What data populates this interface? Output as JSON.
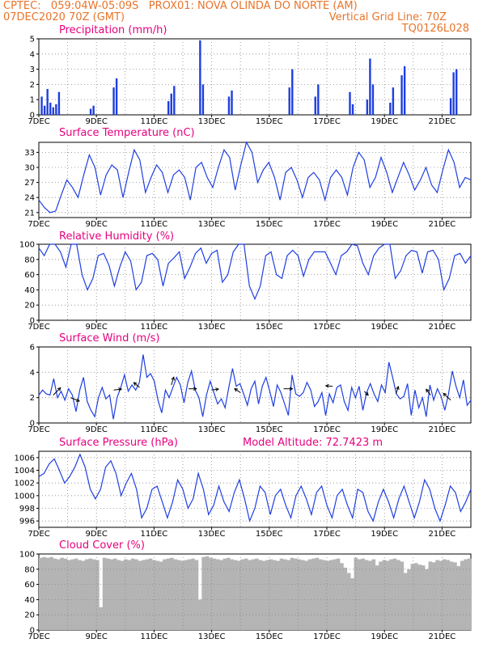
{
  "header": {
    "line1": "CPTEC:   059:04W-05:09S   PROX01: NOVA OLINDA DO NORTE (AM)",
    "line2": "07DEC2020 70Z (GMT)",
    "vertical_grid": "Vertical Grid Line: 70Z",
    "code": "TQ0126L028"
  },
  "colors": {
    "header": "#e8742a",
    "title": "#e6007e",
    "line": "#1f3fe0",
    "cloud": "#b4b4b4",
    "grid": "#888888"
  },
  "chart_data": [
    {
      "id": "precip",
      "type": "bar",
      "title": "Precipitation (mm/h)",
      "ylim": [
        0,
        5
      ],
      "yticks": [
        "0",
        "1",
        "2",
        "3",
        "4",
        "5"
      ],
      "xlabels": [
        "7DEC",
        "9DEC",
        "11DEC",
        "13DEC",
        "15DEC",
        "17DEC",
        "19DEC",
        "21DEC"
      ],
      "x_range_days": [
        0,
        15
      ],
      "values": [
        [
          0.1,
          1.2
        ],
        [
          0.2,
          0.6
        ],
        [
          0.3,
          1.7
        ],
        [
          0.4,
          0.8
        ],
        [
          0.5,
          0.5
        ],
        [
          0.6,
          0.7
        ],
        [
          0.7,
          1.5
        ],
        [
          1.8,
          0.4
        ],
        [
          1.9,
          0.6
        ],
        [
          2.6,
          1.8
        ],
        [
          2.7,
          2.4
        ],
        [
          4.5,
          0.9
        ],
        [
          4.6,
          1.4
        ],
        [
          4.7,
          1.9
        ],
        [
          5.6,
          4.9
        ],
        [
          5.7,
          2.0
        ],
        [
          6.6,
          1.2
        ],
        [
          6.7,
          1.6
        ],
        [
          8.7,
          1.8
        ],
        [
          8.8,
          3.0
        ],
        [
          9.6,
          1.2
        ],
        [
          9.7,
          2.0
        ],
        [
          10.8,
          1.5
        ],
        [
          10.9,
          0.7
        ],
        [
          11.4,
          1.0
        ],
        [
          11.5,
          3.7
        ],
        [
          11.6,
          2.0
        ],
        [
          12.2,
          0.8
        ],
        [
          12.3,
          1.8
        ],
        [
          12.6,
          2.6
        ],
        [
          12.7,
          3.2
        ],
        [
          14.3,
          1.1
        ],
        [
          14.4,
          2.8
        ],
        [
          14.5,
          3.0
        ]
      ]
    },
    {
      "id": "temp",
      "type": "line",
      "title": "Surface Temperature (nC)",
      "ylim": [
        20,
        35
      ],
      "yticks": [
        "21",
        "24",
        "27",
        "30",
        "33"
      ],
      "ytick_values": [
        21,
        24,
        27,
        30,
        33
      ],
      "xlabels": [
        "7DEC",
        "9DEC",
        "11DEC",
        "13DEC",
        "15DEC",
        "17DEC",
        "19DEC",
        "21DEC"
      ],
      "x_range_days": [
        0,
        15
      ],
      "values": [
        23.5,
        22.0,
        21.0,
        21.3,
        24.5,
        27.5,
        26.0,
        24.0,
        28.5,
        32.5,
        30.0,
        24.5,
        28.5,
        30.5,
        29.5,
        24.0,
        29.0,
        33.5,
        31.5,
        25.0,
        28.0,
        30.5,
        29.0,
        25.0,
        28.5,
        29.5,
        28.0,
        23.5,
        30.0,
        31.0,
        28.0,
        26.0,
        30.0,
        33.5,
        32.0,
        25.5,
        30.5,
        35.0,
        33.0,
        27.0,
        29.5,
        31.0,
        28.0,
        23.5,
        29.0,
        30.0,
        27.5,
        24.0,
        28.0,
        29.0,
        27.5,
        23.5,
        28.0,
        29.5,
        28.0,
        24.5,
        30.0,
        33.0,
        31.5,
        26.0,
        28.0,
        32.0,
        29.0,
        25.0,
        28.0,
        31.0,
        28.5,
        25.5,
        27.5,
        30.0,
        26.5,
        25.0,
        29.5,
        33.5,
        31.0,
        26.0,
        28.0,
        27.5
      ]
    },
    {
      "id": "rh",
      "type": "line",
      "title": "Relative Humidity (%)",
      "ylim": [
        0,
        100
      ],
      "yticks": [
        "0",
        "20",
        "40",
        "60",
        "80",
        "100"
      ],
      "ytick_values": [
        0,
        20,
        40,
        60,
        80,
        100
      ],
      "xlabels": [
        "7DEC",
        "9DEC",
        "11DEC",
        "13DEC",
        "15DEC",
        "17DEC",
        "19DEC",
        "21DEC"
      ],
      "x_range_days": [
        0,
        15
      ],
      "values": [
        95,
        85,
        100,
        100,
        90,
        70,
        100,
        100,
        60,
        40,
        55,
        85,
        88,
        72,
        45,
        70,
        90,
        78,
        40,
        50,
        85,
        88,
        80,
        45,
        75,
        82,
        90,
        55,
        70,
        88,
        95,
        75,
        88,
        92,
        50,
        60,
        90,
        100,
        100,
        45,
        28,
        45,
        85,
        90,
        60,
        55,
        85,
        92,
        85,
        58,
        80,
        90,
        90,
        90,
        75,
        60,
        85,
        90,
        100,
        98,
        75,
        60,
        85,
        95,
        100,
        100,
        55,
        65,
        85,
        92,
        90,
        62,
        90,
        92,
        80,
        40,
        55,
        85,
        88,
        75,
        85
      ]
    },
    {
      "id": "wind",
      "type": "line",
      "title": "Surface Wind (m/s)",
      "ylim": [
        0,
        6
      ],
      "yticks": [
        "0",
        "2",
        "4",
        "6"
      ],
      "ytick_values": [
        0,
        2,
        4,
        6
      ],
      "xlabels": [
        "7DEC",
        "9DEC",
        "11DEC",
        "13DEC",
        "15DEC",
        "17DEC",
        "19DEC",
        "21DEC"
      ],
      "x_range_days": [
        0,
        15
      ],
      "values": [
        2.2,
        2.6,
        2.3,
        2.2,
        3.5,
        2.0,
        2.5,
        1.8,
        2.7,
        2.2,
        0.9,
        2.6,
        3.6,
        1.7,
        1.0,
        0.5,
        2.0,
        2.8,
        1.9,
        2.2,
        0.3,
        2.0,
        2.8,
        3.8,
        2.5,
        3.0,
        2.6,
        3.2,
        5.4,
        3.6,
        3.9,
        3.3,
        1.8,
        0.8,
        2.6,
        2.0,
        2.8,
        3.6,
        3.0,
        1.6,
        3.2,
        4.1,
        2.6,
        2.0,
        0.5,
        2.2,
        3.3,
        2.4,
        1.5,
        1.9,
        1.2,
        2.8,
        4.3,
        2.9,
        3.1,
        2.3,
        1.4,
        2.7,
        3.3,
        1.5,
        2.9,
        3.6,
        2.5,
        1.3,
        3.0,
        2.4,
        1.5,
        0.6,
        3.8,
        2.3,
        2.1,
        2.4,
        3.2,
        2.6,
        1.3,
        1.7,
        2.4,
        0.6,
        2.3,
        1.6,
        2.8,
        3.0,
        1.7,
        1.0,
        2.8,
        2.0,
        2.9,
        1.0,
        2.4,
        3.1,
        2.3,
        1.7,
        3.0,
        2.4,
        4.8,
        3.6,
        2.3,
        1.9,
        2.1,
        3.1,
        0.6,
        2.6,
        1.2,
        2.0,
        0.5,
        3.0,
        1.8,
        2.7,
        2.1,
        1.0,
        2.3,
        4.1,
        2.9,
        2.0,
        3.4,
        1.4,
        1.8
      ]
    },
    {
      "id": "pres",
      "type": "line",
      "title": "Surface Pressure (hPa)",
      "extra_label": "Model Altitude: 72.7423 m",
      "ylim": [
        995,
        1007
      ],
      "yticks": [
        "996",
        "998",
        "1000",
        "1002",
        "1004",
        "1006"
      ],
      "ytick_values": [
        996,
        998,
        1000,
        1002,
        1004,
        1006
      ],
      "xlabels": [
        "7DEC",
        "9DEC",
        "11DEC",
        "13DEC",
        "15DEC",
        "17DEC",
        "19DEC",
        "21DEC"
      ],
      "x_range_days": [
        0,
        15
      ],
      "values": [
        1003,
        1003.5,
        1005,
        1005.8,
        1004,
        1002,
        1003,
        1004.5,
        1006.5,
        1004.5,
        1001,
        999.5,
        1001,
        1004.5,
        1005.5,
        1003.5,
        1000,
        1002,
        1003.5,
        1001,
        996.5,
        998,
        1001,
        1001.5,
        999,
        996.5,
        999,
        1002.5,
        1001,
        998,
        999.5,
        1003.5,
        1001,
        997,
        998.5,
        1001.5,
        999,
        997.5,
        1000.5,
        1002.5,
        999.5,
        996,
        998,
        1001.5,
        1000.5,
        997,
        1000,
        1001,
        998.5,
        996.5,
        1000,
        1001.5,
        999.5,
        997,
        1000.5,
        1001.5,
        998.5,
        996.5,
        1000,
        1001,
        998.5,
        996.5,
        1001,
        1000.5,
        997.5,
        996,
        999,
        1001,
        999,
        996.5,
        999.5,
        1001.5,
        999,
        996.5,
        999,
        1002.5,
        1001,
        998,
        996,
        998.5,
        1001.5,
        1000.5,
        997.5,
        999,
        1001
      ]
    },
    {
      "id": "cloud",
      "type": "area",
      "title": "Cloud Cover (%)",
      "ylim": [
        0,
        100
      ],
      "yticks": [
        "0",
        "20",
        "40",
        "60",
        "80",
        "100"
      ],
      "ytick_values": [
        0,
        20,
        40,
        60,
        80,
        100
      ],
      "xlabels": [
        "7DEC",
        "9DEC",
        "11DEC",
        "13DEC",
        "15DEC",
        "17DEC",
        "19DEC",
        "21DEC"
      ],
      "x_range_days": [
        0,
        15
      ],
      "values": [
        95,
        96,
        95,
        96,
        94,
        93,
        95,
        94,
        92,
        93,
        94,
        92,
        91,
        93,
        94,
        93,
        92,
        30,
        95,
        94,
        93,
        94,
        92,
        91,
        93,
        92,
        94,
        93,
        91,
        92,
        93,
        94,
        92,
        91,
        90,
        93,
        94,
        95,
        93,
        92,
        91,
        92,
        93,
        94,
        92,
        40,
        96,
        97,
        95,
        94,
        93,
        92,
        94,
        95,
        93,
        92,
        91,
        93,
        94,
        92,
        93,
        94,
        92,
        91,
        92,
        93,
        92,
        91,
        94,
        93,
        92,
        95,
        94,
        93,
        92,
        91,
        93,
        94,
        95,
        93,
        92,
        91,
        92,
        93,
        94,
        88,
        82,
        75,
        68,
        95,
        93,
        94,
        92,
        91,
        93,
        85,
        90,
        92,
        91,
        93,
        94,
        92,
        90,
        75,
        80,
        87,
        88,
        86,
        85,
        80,
        90,
        89,
        92,
        91,
        93,
        92,
        90,
        89,
        84,
        91,
        93,
        94
      ]
    }
  ]
}
